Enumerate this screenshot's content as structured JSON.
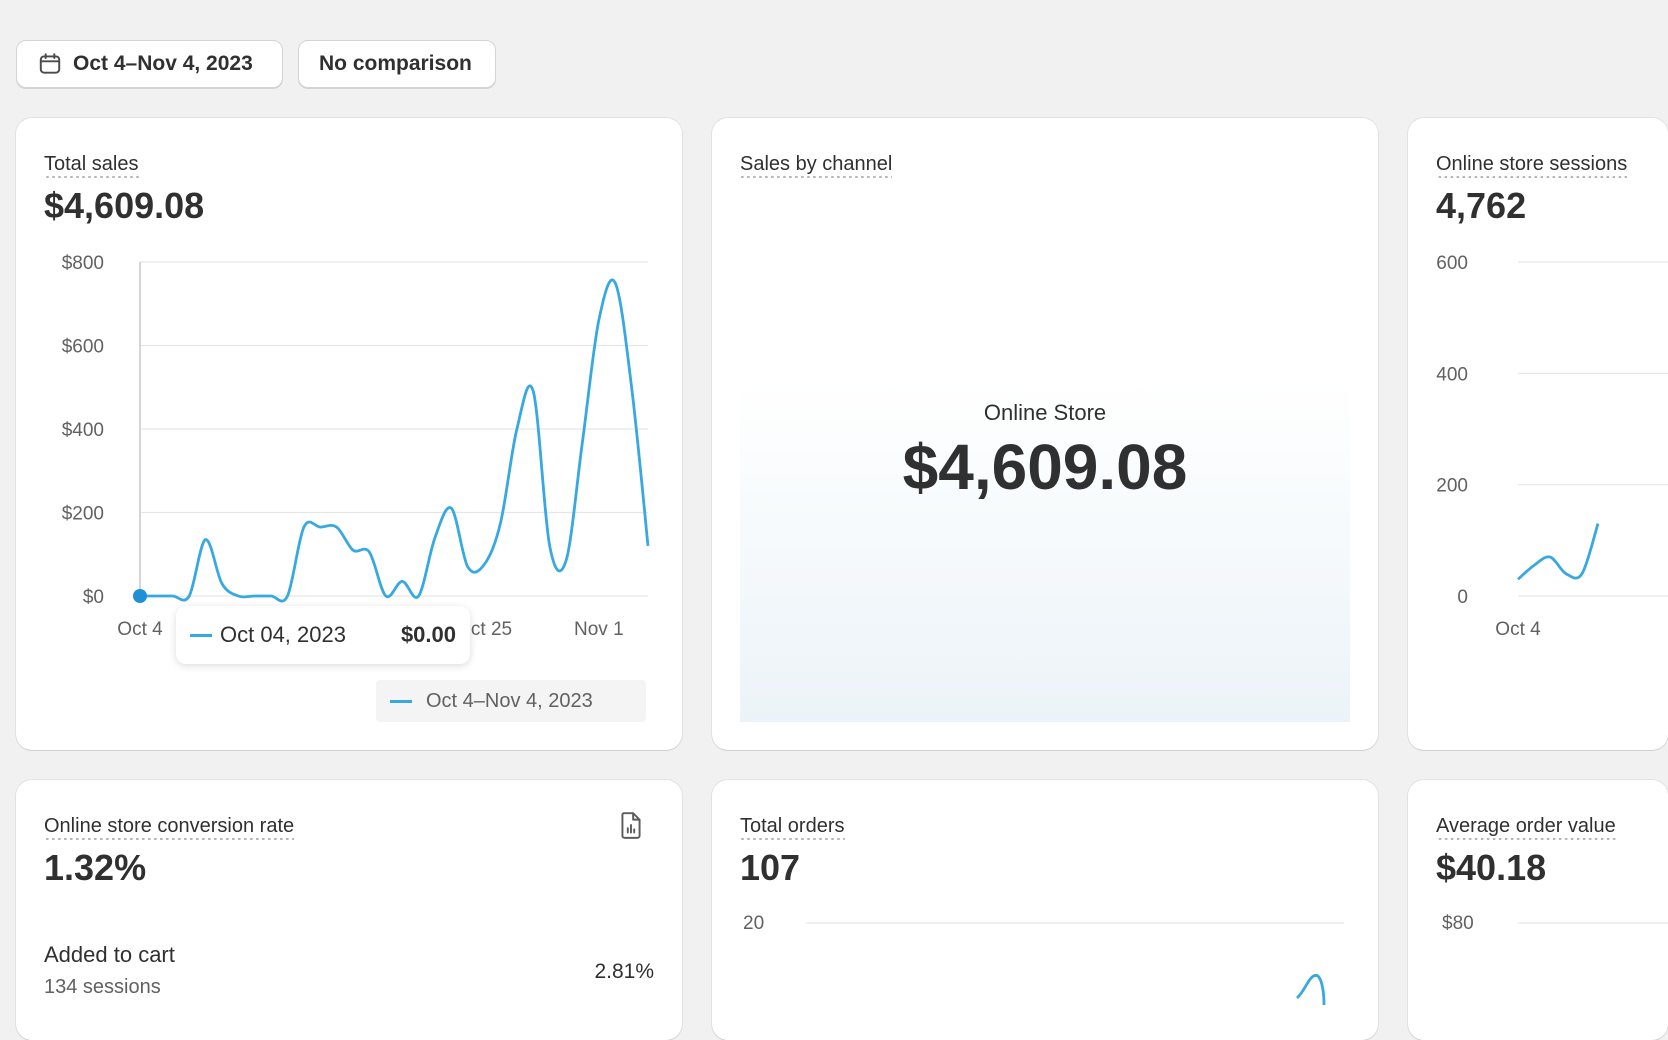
{
  "toolbar": {
    "date_range": "Oct 4–Nov 4, 2023",
    "comparison": "No comparison"
  },
  "colors": {
    "line": "#37a9e0",
    "point": "#1d91d4",
    "background": "#f1f1f1"
  },
  "total_sales": {
    "title": "Total sales",
    "value": "$4,609.08",
    "y_ticks": [
      "$800",
      "$600",
      "$400",
      "$200",
      "$0"
    ],
    "x_ticks": [
      "Oct 4",
      "Oct 25",
      "Nov 1"
    ],
    "tooltip": {
      "date": "Oct 04, 2023",
      "value": "$0.00"
    },
    "legend": "Oct 4–Nov 4, 2023"
  },
  "sales_by_channel": {
    "title": "Sales by channel",
    "channel": "Online Store",
    "value": "$4,609.08"
  },
  "online_sessions": {
    "title": "Online store sessions",
    "value": "4,762",
    "y_ticks": [
      "600",
      "400",
      "200",
      "0"
    ],
    "x_ticks": [
      "Oct 4"
    ]
  },
  "conversion_rate": {
    "title": "Online store conversion rate",
    "value": "1.32%",
    "row_label": "Added to cart",
    "row_sub": "134 sessions",
    "row_value": "2.81%",
    "icon": "report-icon"
  },
  "total_orders": {
    "title": "Total orders",
    "value": "107",
    "y_ticks": [
      "20"
    ]
  },
  "avg_order_value": {
    "title": "Average order value",
    "value": "$40.18",
    "y_ticks": [
      "$80"
    ]
  },
  "chart_data": [
    {
      "type": "line",
      "title": "Total sales",
      "xlabel": "",
      "ylabel": "",
      "x": [
        "Oct 4",
        "Oct 5",
        "Oct 6",
        "Oct 7",
        "Oct 8",
        "Oct 9",
        "Oct 10",
        "Oct 11",
        "Oct 12",
        "Oct 13",
        "Oct 14",
        "Oct 15",
        "Oct 16",
        "Oct 17",
        "Oct 18",
        "Oct 19",
        "Oct 20",
        "Oct 21",
        "Oct 22",
        "Oct 23",
        "Oct 24",
        "Oct 25",
        "Oct 26",
        "Oct 27",
        "Oct 28",
        "Oct 29",
        "Oct 30",
        "Oct 31",
        "Nov 1",
        "Nov 2",
        "Nov 3",
        "Nov 4"
      ],
      "series": [
        {
          "name": "Oct 4–Nov 4, 2023",
          "values": [
            0,
            0,
            0,
            0,
            135,
            30,
            0,
            0,
            0,
            0,
            165,
            165,
            165,
            110,
            105,
            0,
            35,
            0,
            140,
            210,
            70,
            75,
            175,
            400,
            490,
            120,
            85,
            370,
            660,
            750,
            500,
            120
          ]
        }
      ],
      "ylim": [
        0,
        800
      ],
      "x_tick_labels": [
        "Oct 4",
        "Oct 25",
        "Nov 1"
      ],
      "y_tick_labels": [
        "$0",
        "$200",
        "$400",
        "$600",
        "$800"
      ],
      "grid": true,
      "legend": "bottom-right"
    },
    {
      "type": "line",
      "title": "Online store sessions",
      "series": [
        {
          "values": [
            30,
            55,
            70,
            40,
            40,
            130
          ]
        }
      ],
      "ylim": [
        0,
        600
      ],
      "y_tick_labels": [
        "0",
        "200",
        "400",
        "600"
      ],
      "x_tick_labels": [
        "Oct 4"
      ],
      "grid": true
    }
  ]
}
